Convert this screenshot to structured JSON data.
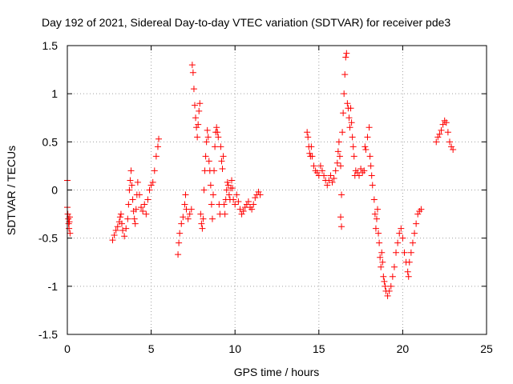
{
  "chart_data": {
    "type": "scatter",
    "title": "Day 192 of 2021, Sidereal Day-to-day VTEC variation (SDTVAR) for receiver pde3",
    "xlabel": "GPS time / hours",
    "ylabel": "SDTVAR / TECUs",
    "xlim": [
      0,
      25
    ],
    "ylim": [
      -1.5,
      1.5
    ],
    "xticks": [
      0,
      5,
      10,
      15,
      20,
      25
    ],
    "xtick_labels": [
      "0",
      "5",
      "10",
      "15",
      "20",
      "25"
    ],
    "yticks": [
      -1.5,
      -1,
      -0.5,
      0,
      0.5,
      1,
      1.5
    ],
    "ytick_labels": [
      "-1.5",
      "-1",
      "-0.5",
      "0",
      "0.5",
      "1",
      "1.5"
    ],
    "grid": true,
    "marker": "plus",
    "color": "#ff0000",
    "series": [
      {
        "name": "SDTVAR",
        "points": [
          [
            0.0,
            -0.18
          ],
          [
            0.03,
            -0.25
          ],
          [
            0.06,
            -0.3
          ],
          [
            0.08,
            -0.35
          ],
          [
            0.1,
            -0.4
          ],
          [
            0.12,
            -0.33
          ],
          [
            0.14,
            -0.28
          ],
          [
            0.16,
            -0.45
          ],
          [
            0.0,
            0.1
          ],
          [
            2.7,
            -0.52
          ],
          [
            2.8,
            -0.47
          ],
          [
            2.9,
            -0.42
          ],
          [
            3.0,
            -0.38
          ],
          [
            3.1,
            -0.33
          ],
          [
            3.15,
            -0.28
          ],
          [
            3.2,
            -0.25
          ],
          [
            3.25,
            -0.35
          ],
          [
            3.3,
            -0.42
          ],
          [
            3.4,
            -0.48
          ],
          [
            3.5,
            -0.4
          ],
          [
            3.6,
            -0.3
          ],
          [
            3.65,
            -0.15
          ],
          [
            3.7,
            0.0
          ],
          [
            3.75,
            0.1
          ],
          [
            3.8,
            0.2
          ],
          [
            3.85,
            0.05
          ],
          [
            3.9,
            -0.1
          ],
          [
            3.95,
            -0.22
          ],
          [
            4.0,
            -0.3
          ],
          [
            4.05,
            -0.35
          ],
          [
            4.1,
            -0.2
          ],
          [
            4.15,
            -0.05
          ],
          [
            4.2,
            0.08
          ],
          [
            4.3,
            -0.05
          ],
          [
            4.4,
            -0.18
          ],
          [
            4.5,
            -0.22
          ],
          [
            4.6,
            -0.15
          ],
          [
            4.7,
            -0.25
          ],
          [
            4.8,
            -0.1
          ],
          [
            4.9,
            0.0
          ],
          [
            5.0,
            0.05
          ],
          [
            5.1,
            0.08
          ],
          [
            5.2,
            0.2
          ],
          [
            5.3,
            0.35
          ],
          [
            5.4,
            0.45
          ],
          [
            5.45,
            0.53
          ],
          [
            6.6,
            -0.67
          ],
          [
            6.65,
            -0.55
          ],
          [
            6.7,
            -0.45
          ],
          [
            6.8,
            -0.35
          ],
          [
            6.9,
            -0.28
          ],
          [
            7.0,
            -0.15
          ],
          [
            7.05,
            -0.05
          ],
          [
            7.1,
            -0.2
          ],
          [
            7.2,
            -0.3
          ],
          [
            7.3,
            -0.25
          ],
          [
            7.4,
            -0.2
          ],
          [
            7.45,
            1.3
          ],
          [
            7.5,
            1.22
          ],
          [
            7.55,
            1.05
          ],
          [
            7.6,
            0.88
          ],
          [
            7.65,
            0.75
          ],
          [
            7.7,
            0.65
          ],
          [
            7.75,
            0.55
          ],
          [
            7.8,
            0.68
          ],
          [
            7.85,
            0.82
          ],
          [
            7.9,
            0.9
          ],
          [
            7.95,
            -0.25
          ],
          [
            8.0,
            -0.35
          ],
          [
            8.05,
            -0.4
          ],
          [
            8.1,
            -0.3
          ],
          [
            8.15,
            0.0
          ],
          [
            8.2,
            0.2
          ],
          [
            8.25,
            0.35
          ],
          [
            8.3,
            0.5
          ],
          [
            8.35,
            0.62
          ],
          [
            8.4,
            0.55
          ],
          [
            8.45,
            0.3
          ],
          [
            8.5,
            0.2
          ],
          [
            8.55,
            0.05
          ],
          [
            8.6,
            -0.15
          ],
          [
            8.65,
            -0.3
          ],
          [
            8.7,
            -0.05
          ],
          [
            8.75,
            0.2
          ],
          [
            8.8,
            0.45
          ],
          [
            8.85,
            0.6
          ],
          [
            8.9,
            0.65
          ],
          [
            8.95,
            0.6
          ],
          [
            9.0,
            0.55
          ],
          [
            9.05,
            -0.15
          ],
          [
            9.1,
            -0.25
          ],
          [
            9.15,
            0.45
          ],
          [
            9.2,
            0.3
          ],
          [
            9.25,
            0.22
          ],
          [
            9.3,
            0.35
          ],
          [
            9.35,
            -0.15
          ],
          [
            9.4,
            -0.25
          ],
          [
            9.45,
            -0.1
          ],
          [
            9.5,
            0.0
          ],
          [
            9.55,
            0.08
          ],
          [
            9.6,
            0.05
          ],
          [
            9.65,
            -0.05
          ],
          [
            9.7,
            -0.1
          ],
          [
            9.75,
            0.02
          ],
          [
            9.8,
            0.1
          ],
          [
            9.85,
            0.02
          ],
          [
            9.9,
            -0.1
          ],
          [
            10.0,
            -0.15
          ],
          [
            10.1,
            -0.05
          ],
          [
            10.2,
            -0.12
          ],
          [
            10.3,
            -0.2
          ],
          [
            10.4,
            -0.25
          ],
          [
            10.5,
            -0.22
          ],
          [
            10.6,
            -0.18
          ],
          [
            10.7,
            -0.15
          ],
          [
            10.8,
            -0.12
          ],
          [
            10.9,
            -0.18
          ],
          [
            11.0,
            -0.2
          ],
          [
            11.1,
            -0.15
          ],
          [
            11.2,
            -0.08
          ],
          [
            11.3,
            -0.05
          ],
          [
            11.4,
            -0.02
          ],
          [
            11.5,
            -0.05
          ],
          [
            14.3,
            0.6
          ],
          [
            14.35,
            0.55
          ],
          [
            14.4,
            0.45
          ],
          [
            14.45,
            0.38
          ],
          [
            14.5,
            0.35
          ],
          [
            14.55,
            0.45
          ],
          [
            14.6,
            0.35
          ],
          [
            14.7,
            0.25
          ],
          [
            14.8,
            0.2
          ],
          [
            14.9,
            0.18
          ],
          [
            15.0,
            0.15
          ],
          [
            15.1,
            0.25
          ],
          [
            15.2,
            0.2
          ],
          [
            15.3,
            0.15
          ],
          [
            15.4,
            0.1
          ],
          [
            15.5,
            0.05
          ],
          [
            15.6,
            0.1
          ],
          [
            15.7,
            0.15
          ],
          [
            15.8,
            0.08
          ],
          [
            15.9,
            0.12
          ],
          [
            16.0,
            0.2
          ],
          [
            16.1,
            0.28
          ],
          [
            16.15,
            0.4
          ],
          [
            16.2,
            0.5
          ],
          [
            16.25,
            0.35
          ],
          [
            16.3,
            0.25
          ],
          [
            16.35,
            -0.05
          ],
          [
            16.4,
            0.6
          ],
          [
            16.45,
            0.8
          ],
          [
            16.5,
            1.0
          ],
          [
            16.55,
            1.2
          ],
          [
            16.6,
            1.38
          ],
          [
            16.65,
            1.42
          ],
          [
            16.7,
            0.9
          ],
          [
            16.75,
            0.85
          ],
          [
            16.8,
            0.75
          ],
          [
            16.85,
            0.65
          ],
          [
            16.9,
            0.85
          ],
          [
            16.95,
            0.7
          ],
          [
            17.0,
            0.55
          ],
          [
            17.05,
            0.45
          ],
          [
            17.1,
            0.35
          ],
          [
            17.15,
            0.15
          ],
          [
            17.2,
            0.2
          ],
          [
            17.3,
            0.18
          ],
          [
            17.4,
            0.15
          ],
          [
            17.5,
            0.22
          ],
          [
            17.6,
            0.18
          ],
          [
            17.7,
            0.2
          ],
          [
            17.75,
            0.45
          ],
          [
            17.8,
            0.42
          ],
          [
            17.9,
            0.55
          ],
          [
            18.0,
            0.65
          ],
          [
            18.05,
            0.35
          ],
          [
            18.1,
            0.25
          ],
          [
            18.15,
            0.15
          ],
          [
            18.2,
            0.05
          ],
          [
            18.3,
            -0.1
          ],
          [
            18.35,
            -0.25
          ],
          [
            18.4,
            -0.4
          ],
          [
            18.45,
            -0.3
          ],
          [
            18.5,
            -0.2
          ],
          [
            18.55,
            -0.45
          ],
          [
            18.6,
            -0.55
          ],
          [
            18.65,
            -0.7
          ],
          [
            18.7,
            -0.8
          ],
          [
            18.75,
            -0.65
          ],
          [
            18.8,
            -0.75
          ],
          [
            18.85,
            -0.9
          ],
          [
            18.9,
            -0.95
          ],
          [
            18.95,
            -1.0
          ],
          [
            19.0,
            -1.05
          ],
          [
            19.1,
            -1.1
          ],
          [
            19.2,
            -1.05
          ],
          [
            19.3,
            -1.0
          ],
          [
            19.4,
            -0.9
          ],
          [
            19.5,
            -0.8
          ],
          [
            19.6,
            -0.65
          ],
          [
            19.7,
            -0.55
          ],
          [
            19.8,
            -0.45
          ],
          [
            19.9,
            -0.4
          ],
          [
            20.0,
            -0.5
          ],
          [
            20.1,
            -0.65
          ],
          [
            20.2,
            -0.75
          ],
          [
            20.3,
            -0.85
          ],
          [
            20.35,
            -0.9
          ],
          [
            20.4,
            -0.75
          ],
          [
            20.5,
            -0.65
          ],
          [
            20.6,
            -0.55
          ],
          [
            20.7,
            -0.45
          ],
          [
            20.8,
            -0.35
          ],
          [
            20.9,
            -0.25
          ],
          [
            21.0,
            -0.22
          ],
          [
            21.1,
            -0.2
          ],
          [
            16.3,
            -0.28
          ],
          [
            16.35,
            -0.38
          ],
          [
            22.0,
            0.5
          ],
          [
            22.1,
            0.55
          ],
          [
            22.2,
            0.58
          ],
          [
            22.3,
            0.62
          ],
          [
            22.4,
            0.68
          ],
          [
            22.5,
            0.72
          ],
          [
            22.6,
            0.7
          ],
          [
            22.7,
            0.6
          ],
          [
            22.8,
            0.5
          ],
          [
            22.9,
            0.45
          ],
          [
            23.0,
            0.42
          ]
        ]
      }
    ]
  }
}
